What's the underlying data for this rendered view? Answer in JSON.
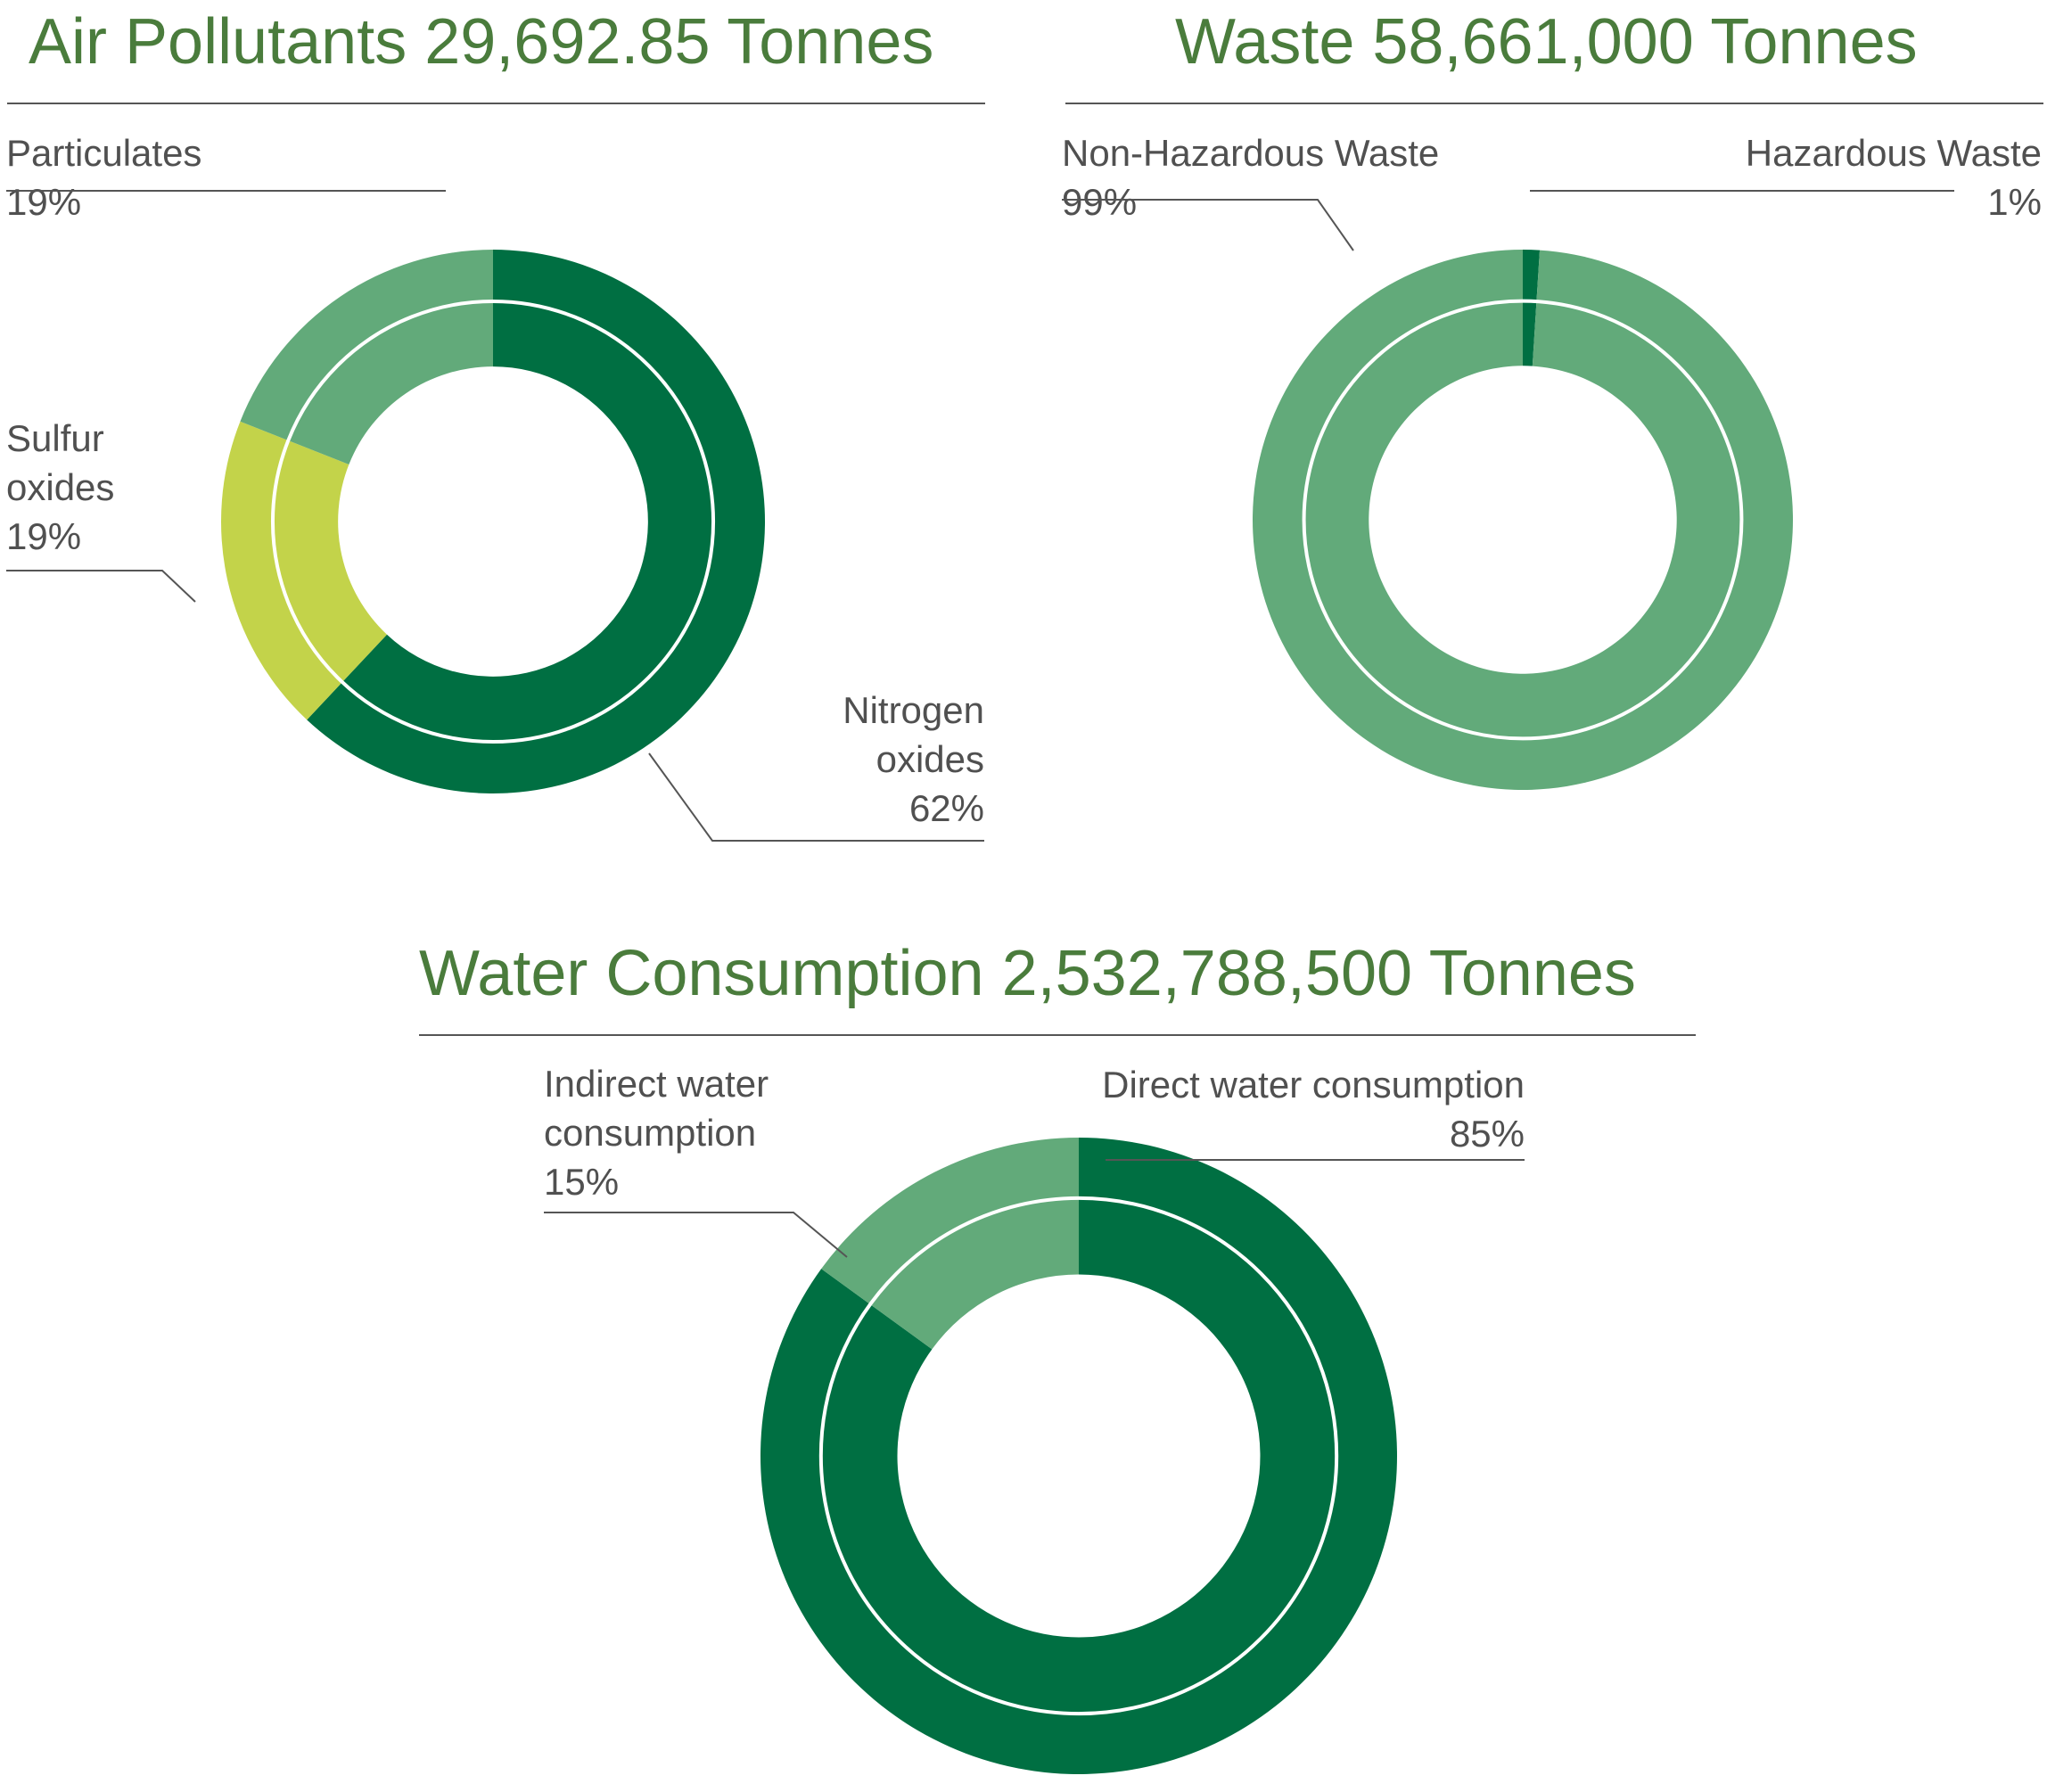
{
  "colors": {
    "title": "#4a7c3c",
    "label": "#505050",
    "rule": "#555555",
    "ring_separator": "#ffffff"
  },
  "chart_data": [
    {
      "type": "pie",
      "title": "Air Pollutants 29,692.85 Tonnes",
      "slices": [
        {
          "name": "Nitrogen oxides",
          "label_lines": [
            "Nitrogen",
            "oxides"
          ],
          "value": 62,
          "display": "62%",
          "color": "#006f42"
        },
        {
          "name": "Sulfur oxides",
          "label_lines": [
            "Sulfur",
            "oxides"
          ],
          "value": 19,
          "display": "19%",
          "color": "#c3d34a"
        },
        {
          "name": "Particulates",
          "label_lines": [
            "Particulates"
          ],
          "value": 19,
          "display": "19%",
          "color": "#62aa7a"
        }
      ]
    },
    {
      "type": "pie",
      "title": "Waste 58,661,000 Tonnes",
      "slices": [
        {
          "name": "Hazardous Waste",
          "label_lines": [
            "Hazardous Waste"
          ],
          "value": 1,
          "display": "1%",
          "color": "#006f42"
        },
        {
          "name": "Non-Hazardous Waste",
          "label_lines": [
            "Non-Hazardous Waste"
          ],
          "value": 99,
          "display": "99%",
          "color": "#62aa7a"
        }
      ]
    },
    {
      "type": "pie",
      "title": "Water Consumption 2,532,788,500 Tonnes",
      "slices": [
        {
          "name": "Direct water consumption",
          "label_lines": [
            "Direct water consumption"
          ],
          "value": 85,
          "display": "85%",
          "color": "#006f42"
        },
        {
          "name": "Indirect water consumption",
          "label_lines": [
            "Indirect water",
            "consumption"
          ],
          "value": 15,
          "display": "15%",
          "color": "#62aa7a"
        }
      ]
    }
  ]
}
